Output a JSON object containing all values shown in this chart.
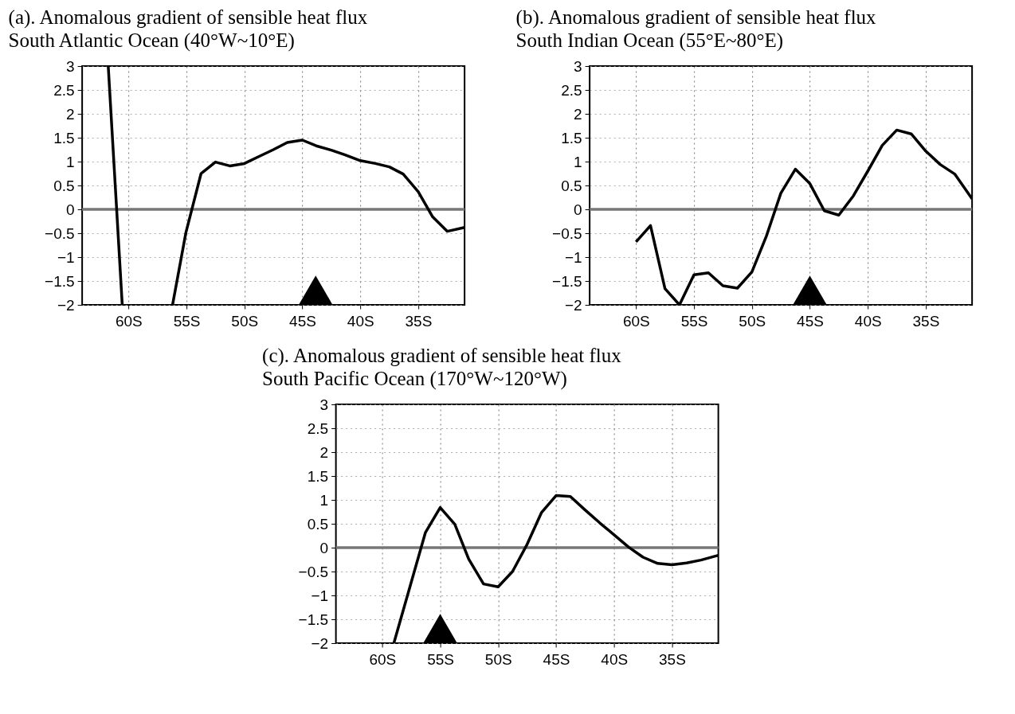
{
  "chart_data": [
    {
      "type": "line",
      "title": "(a).   Anomalous gradient of sensible heat flux",
      "subtitle": "South Atlantic Ocean (40°W~10°E)",
      "xlim": [
        -64,
        -31
      ],
      "xticks": [
        {
          "value": -60,
          "label": "60S"
        },
        {
          "value": -55,
          "label": "55S"
        },
        {
          "value": -50,
          "label": "50S"
        },
        {
          "value": -45,
          "label": "45S"
        },
        {
          "value": -40,
          "label": "40S"
        },
        {
          "value": -35,
          "label": "35S"
        }
      ],
      "ylim": [
        -2,
        3
      ],
      "yticks": [
        -2,
        -1.5,
        -1,
        -0.5,
        0,
        0.5,
        1,
        1.5,
        2,
        2.5,
        3
      ],
      "grid": true,
      "ref_lines": [
        {
          "axis": "y",
          "value": 0,
          "color": "#777777"
        }
      ],
      "series": [
        {
          "color": "#000000",
          "x": [
            -61.75,
            -60.54,
            -58,
            -56.2,
            -55.05,
            -53.74,
            -52.5,
            -51.26,
            -50,
            -48.8,
            -47.5,
            -46.3,
            -45,
            -43.8,
            -42.5,
            -41.3,
            -40,
            -38.7,
            -37.5,
            -36.3,
            -35,
            -33.75,
            -32.5,
            -31
          ],
          "values": [
            3,
            -2,
            null,
            -2,
            -0.49,
            0.75,
            0.99,
            0.91,
            0.96,
            1.1,
            1.25,
            1.4,
            1.45,
            1.33,
            1.24,
            1.14,
            1.02,
            0.96,
            0.89,
            0.74,
            0.37,
            -0.16,
            -0.46,
            -0.38
          ]
        },
        {
          "type": "scatter",
          "marker": "triangle",
          "color": "#000000",
          "x": [
            -43.85
          ],
          "values": [
            -1.7
          ]
        }
      ]
    },
    {
      "type": "line",
      "title": "(b).   Anomalous gradient of sensible heat flux",
      "subtitle": "South Indian Ocean (55°E~80°E)",
      "xlim": [
        -64,
        -31
      ],
      "xticks": [
        {
          "value": -60,
          "label": "60S"
        },
        {
          "value": -55,
          "label": "55S"
        },
        {
          "value": -50,
          "label": "50S"
        },
        {
          "value": -45,
          "label": "45S"
        },
        {
          "value": -40,
          "label": "40S"
        },
        {
          "value": -35,
          "label": "35S"
        }
      ],
      "ylim": [
        -2,
        3
      ],
      "yticks": [
        -2,
        -1.5,
        -1,
        -0.5,
        0,
        0.5,
        1,
        1.5,
        2,
        2.5,
        3
      ],
      "grid": true,
      "ref_lines": [
        {
          "axis": "y",
          "value": 0,
          "color": "#777777"
        }
      ],
      "series": [
        {
          "color": "#000000",
          "x": [
            -60,
            -58.75,
            -57.5,
            -56.25,
            -55,
            -53.75,
            -52.5,
            -51.25,
            -50,
            -48.75,
            -47.5,
            -46.25,
            -45,
            -43.75,
            -42.5,
            -41.25,
            -40,
            -38.75,
            -37.5,
            -36.25,
            -35,
            -33.75,
            -32.5,
            -31
          ],
          "values": [
            -0.68,
            -0.34,
            -1.66,
            -2,
            -1.37,
            -1.33,
            -1.6,
            -1.65,
            -1.31,
            -0.56,
            0.34,
            0.84,
            0.54,
            -0.03,
            -0.12,
            0.28,
            0.8,
            1.34,
            1.66,
            1.58,
            1.22,
            0.94,
            0.74,
            0.22
          ]
        },
        {
          "type": "scatter",
          "marker": "triangle",
          "color": "#000000",
          "x": [
            -45
          ],
          "values": [
            -1.7
          ]
        }
      ]
    },
    {
      "type": "line",
      "title": "(c).   Anomalous gradient of sensible heat flux",
      "subtitle": "South Pacific Ocean (170°W~120°W)",
      "xlim": [
        -64,
        -31
      ],
      "xticks": [
        {
          "value": -60,
          "label": "60S"
        },
        {
          "value": -55,
          "label": "55S"
        },
        {
          "value": -50,
          "label": "50S"
        },
        {
          "value": -45,
          "label": "45S"
        },
        {
          "value": -40,
          "label": "40S"
        },
        {
          "value": -35,
          "label": "35S"
        }
      ],
      "ylim": [
        -2,
        3
      ],
      "yticks": [
        -2,
        -1.5,
        -1,
        -0.5,
        0,
        0.5,
        1,
        1.5,
        2,
        2.5,
        3
      ],
      "grid": true,
      "ref_lines": [
        {
          "axis": "y",
          "value": 0,
          "color": "#777777"
        }
      ],
      "series": [
        {
          "color": "#000000",
          "x": [
            -59,
            -56.27,
            -55,
            -53.74,
            -52.54,
            -51.26,
            -50,
            -48.76,
            -47.5,
            -46.27,
            -45,
            -43.77,
            -42.5,
            -41.24,
            -40,
            -38.74,
            -37.5,
            -36.24,
            -35,
            -33.74,
            -32.5,
            -31
          ],
          "values": [
            -2,
            0.32,
            0.84,
            0.49,
            -0.24,
            -0.76,
            -0.82,
            -0.5,
            0.07,
            0.73,
            1.09,
            1.07,
            0.79,
            0.52,
            0.27,
            0.01,
            -0.2,
            -0.33,
            -0.36,
            -0.32,
            -0.26,
            -0.16
          ]
        },
        {
          "type": "scatter",
          "marker": "triangle",
          "color": "#000000",
          "x": [
            -55
          ],
          "values": [
            -1.7
          ]
        }
      ]
    }
  ]
}
